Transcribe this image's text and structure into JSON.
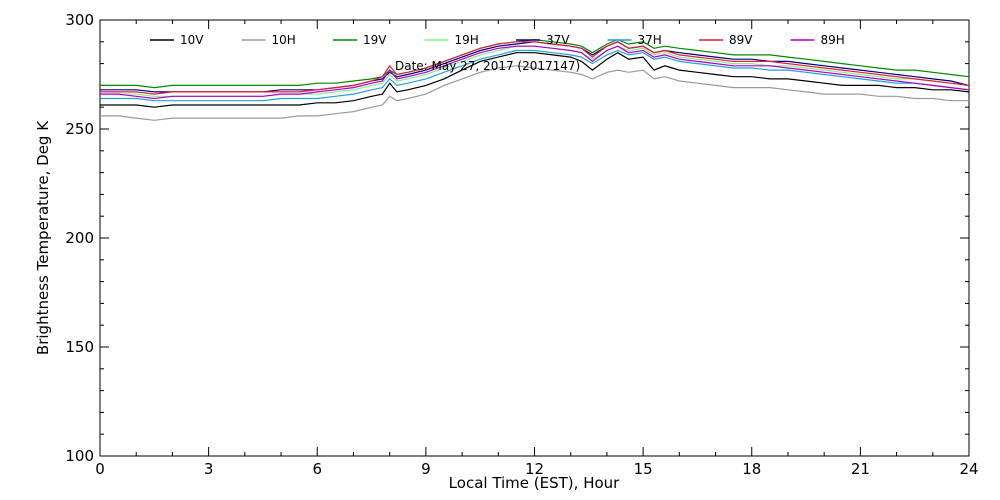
{
  "chart_data": {
    "type": "line",
    "xlabel": "Local Time (EST), Hour",
    "ylabel": "Brightness Temperature, Deg K",
    "annotation": "Date: May 27, 2017 (2017147)",
    "xlim": [
      0,
      24
    ],
    "ylim": [
      100,
      300
    ],
    "x_major_ticks": [
      0,
      3,
      6,
      9,
      12,
      15,
      18,
      21,
      24
    ],
    "x_tick_labels": [
      "0",
      "3",
      "6",
      "9",
      "12",
      "15",
      "18",
      "21",
      "24"
    ],
    "y_major_ticks": [
      100,
      150,
      200,
      250,
      300
    ],
    "y_tick_labels": [
      "100",
      "150",
      "200",
      "250",
      "300"
    ],
    "grid": false,
    "legend_position": "top",
    "x": [
      0,
      0.5,
      1,
      1.5,
      2,
      2.5,
      3,
      3.5,
      4,
      4.5,
      5,
      5.5,
      6,
      6.5,
      7,
      7.5,
      7.8,
      8,
      8.2,
      8.5,
      9,
      9.5,
      10,
      10.5,
      11,
      11.5,
      12,
      12.5,
      13,
      13.3,
      13.6,
      14,
      14.3,
      14.6,
      15,
      15.3,
      15.6,
      16,
      16.5,
      17,
      17.5,
      18,
      18.5,
      19,
      19.5,
      20,
      20.5,
      21,
      21.5,
      22,
      22.5,
      23,
      23.5,
      24
    ],
    "series": [
      {
        "name": "10V",
        "color": "#000000",
        "values": [
          261,
          261,
          261,
          260,
          261,
          261,
          261,
          261,
          261,
          261,
          261,
          261,
          262,
          262,
          263,
          265,
          266,
          271,
          267,
          268,
          270,
          273,
          277,
          281,
          283,
          285,
          285,
          284,
          283,
          281,
          277,
          282,
          285,
          282,
          283,
          277,
          279,
          277,
          276,
          275,
          274,
          274,
          273,
          273,
          272,
          271,
          270,
          270,
          270,
          269,
          269,
          268,
          268,
          267
        ]
      },
      {
        "name": "10H",
        "color": "#9a9a9a",
        "values": [
          256,
          256,
          255,
          254,
          255,
          255,
          255,
          255,
          255,
          255,
          255,
          256,
          256,
          257,
          258,
          260,
          261,
          265,
          263,
          264,
          266,
          270,
          273,
          276,
          278,
          279,
          278,
          277,
          276,
          275,
          273,
          276,
          277,
          276,
          277,
          273,
          274,
          272,
          271,
          270,
          269,
          269,
          269,
          268,
          267,
          266,
          266,
          266,
          265,
          265,
          264,
          264,
          263,
          263
        ]
      },
      {
        "name": "19V",
        "color": "#008800",
        "values": [
          270,
          270,
          270,
          269,
          270,
          270,
          270,
          270,
          270,
          270,
          270,
          270,
          271,
          271,
          272,
          273,
          274,
          277,
          275,
          276,
          278,
          281,
          284,
          287,
          289,
          290,
          291,
          290,
          289,
          288,
          285,
          289,
          291,
          289,
          290,
          287,
          288,
          287,
          286,
          285,
          284,
          284,
          284,
          283,
          282,
          281,
          280,
          279,
          278,
          277,
          277,
          276,
          275,
          274
        ]
      },
      {
        "name": "19H",
        "color": "#88ee88",
        "values": [
          266,
          266,
          266,
          265,
          265,
          265,
          265,
          265,
          265,
          265,
          266,
          266,
          266,
          267,
          268,
          270,
          271,
          275,
          272,
          273,
          275,
          278,
          281,
          284,
          286,
          288,
          288,
          287,
          286,
          285,
          282,
          286,
          288,
          286,
          287,
          284,
          285,
          283,
          282,
          281,
          280,
          280,
          279,
          279,
          278,
          277,
          276,
          275,
          274,
          273,
          273,
          272,
          271,
          270
        ]
      },
      {
        "name": "37V",
        "color": "#000080",
        "values": [
          268,
          268,
          268,
          267,
          267,
          267,
          267,
          267,
          267,
          267,
          268,
          268,
          268,
          269,
          270,
          272,
          273,
          276,
          274,
          275,
          277,
          280,
          283,
          286,
          288,
          289,
          290,
          289,
          288,
          287,
          284,
          288,
          290,
          287,
          288,
          285,
          286,
          285,
          284,
          283,
          282,
          282,
          281,
          281,
          280,
          279,
          278,
          277,
          276,
          275,
          274,
          273,
          272,
          270
        ]
      },
      {
        "name": "37H",
        "color": "#1ea0e0",
        "values": [
          264,
          264,
          264,
          263,
          263,
          263,
          263,
          263,
          263,
          263,
          264,
          264,
          264,
          265,
          266,
          268,
          269,
          273,
          270,
          271,
          273,
          276,
          279,
          282,
          284,
          286,
          286,
          285,
          284,
          283,
          280,
          284,
          286,
          284,
          285,
          282,
          283,
          281,
          280,
          279,
          278,
          278,
          277,
          277,
          276,
          275,
          274,
          273,
          272,
          271,
          271,
          270,
          269,
          268
        ]
      },
      {
        "name": "89V",
        "color": "#e0203a",
        "values": [
          267,
          267,
          267,
          266,
          267,
          267,
          267,
          267,
          267,
          267,
          267,
          267,
          268,
          269,
          270,
          272,
          274,
          279,
          275,
          276,
          278,
          281,
          284,
          287,
          289,
          290,
          290,
          289,
          288,
          287,
          283,
          288,
          290,
          287,
          288,
          285,
          286,
          284,
          283,
          282,
          281,
          281,
          281,
          280,
          279,
          278,
          277,
          276,
          275,
          274,
          273,
          272,
          271,
          270
        ]
      },
      {
        "name": "89H",
        "color": "#b000d0",
        "values": [
          266,
          266,
          265,
          264,
          265,
          265,
          265,
          265,
          265,
          265,
          266,
          266,
          267,
          268,
          269,
          271,
          272,
          277,
          273,
          274,
          276,
          279,
          282,
          285,
          287,
          288,
          288,
          287,
          286,
          285,
          281,
          286,
          288,
          285,
          286,
          283,
          284,
          282,
          281,
          280,
          279,
          279,
          279,
          278,
          277,
          276,
          275,
          274,
          273,
          272,
          271,
          270,
          269,
          268
        ]
      }
    ]
  }
}
